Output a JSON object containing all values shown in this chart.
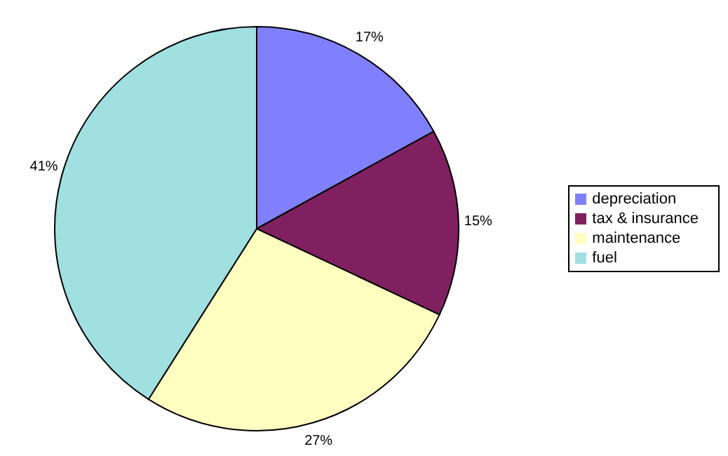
{
  "chart_data": {
    "type": "pie",
    "categories": [
      "depreciation",
      "tax & insurance",
      "maintenance",
      "fuel"
    ],
    "values": [
      17,
      15,
      27,
      41
    ],
    "colors": [
      "#8080ff",
      "#802060",
      "#ffffc0",
      "#a0e0e0"
    ],
    "value_labels": [
      "17%",
      "15%",
      "27%",
      "41%"
    ],
    "legend": "right"
  }
}
